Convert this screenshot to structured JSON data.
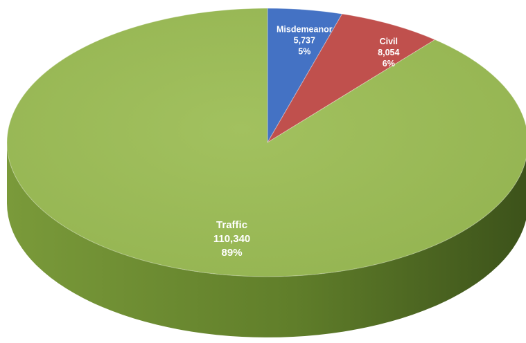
{
  "chart_data": {
    "type": "pie",
    "style": "3d",
    "start_angle_deg": 0,
    "direction": "clockwise",
    "slices": [
      {
        "name": "Misdemeanor",
        "value": 5737,
        "value_label": "5,737",
        "percent_label": "5%",
        "color": "#4472C4",
        "side_color": "#2F528F"
      },
      {
        "name": "Civil",
        "value": 8054,
        "value_label": "8,054",
        "percent_label": "6%",
        "color": "#C0504D",
        "side_color": "#8E3532"
      },
      {
        "name": "Traffic",
        "value": 110340,
        "value_label": "110,340",
        "percent_label": "89%",
        "color": "#9BBB59",
        "side_color": "#5F7A2C"
      }
    ],
    "title": "",
    "legend": "none"
  }
}
